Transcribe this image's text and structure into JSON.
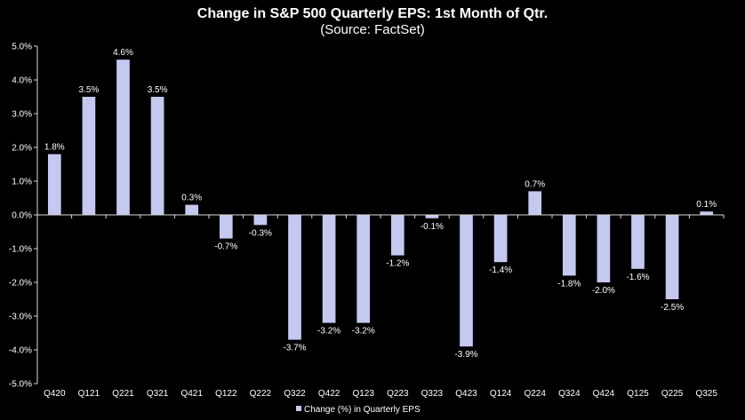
{
  "chart_data": {
    "type": "bar",
    "title": "Change in S&P 500 Quarterly EPS: 1st Month of Qtr.",
    "subtitle": "(Source: FactSet)",
    "xlabel": "",
    "ylabel": "",
    "ylim": [
      -5.0,
      5.0
    ],
    "ytick_step": 1.0,
    "grid": false,
    "legend_position": "bottom",
    "categories": [
      "Q420",
      "Q121",
      "Q221",
      "Q321",
      "Q421",
      "Q122",
      "Q222",
      "Q322",
      "Q422",
      "Q123",
      "Q223",
      "Q323",
      "Q423",
      "Q124",
      "Q224",
      "Q324",
      "Q424",
      "Q125",
      "Q225",
      "Q325"
    ],
    "series": [
      {
        "name": "Change (%) in Quarterly EPS",
        "values": [
          1.8,
          3.5,
          4.6,
          3.5,
          0.3,
          -0.7,
          -0.3,
          -3.7,
          -3.2,
          -3.2,
          -1.2,
          -0.1,
          -3.9,
          -1.4,
          0.7,
          -1.8,
          -2.0,
          -1.6,
          -2.5,
          0.1
        ],
        "labels": [
          "1.8%",
          "3.5%",
          "4.6%",
          "3.5%",
          "0.3%",
          "-0.7%",
          "-0.3%",
          "-3.7%",
          "-3.2%",
          "-3.2%",
          "-1.2%",
          "-0.1%",
          "-3.9%",
          "-1.4%",
          "0.7%",
          "-1.8%",
          "-2.0%",
          "-1.6%",
          "-2.5%",
          "0.1%"
        ]
      }
    ],
    "y_tick_labels": [
      "5.0%",
      "4.0%",
      "3.0%",
      "2.0%",
      "1.0%",
      "0.0%",
      "-1.0%",
      "-2.0%",
      "-3.0%",
      "-4.0%",
      "-5.0%"
    ],
    "colors": {
      "background": "#000000",
      "bar": "#c5c9f0",
      "axis": "#d9d9d9",
      "text": "#ffffff"
    }
  }
}
